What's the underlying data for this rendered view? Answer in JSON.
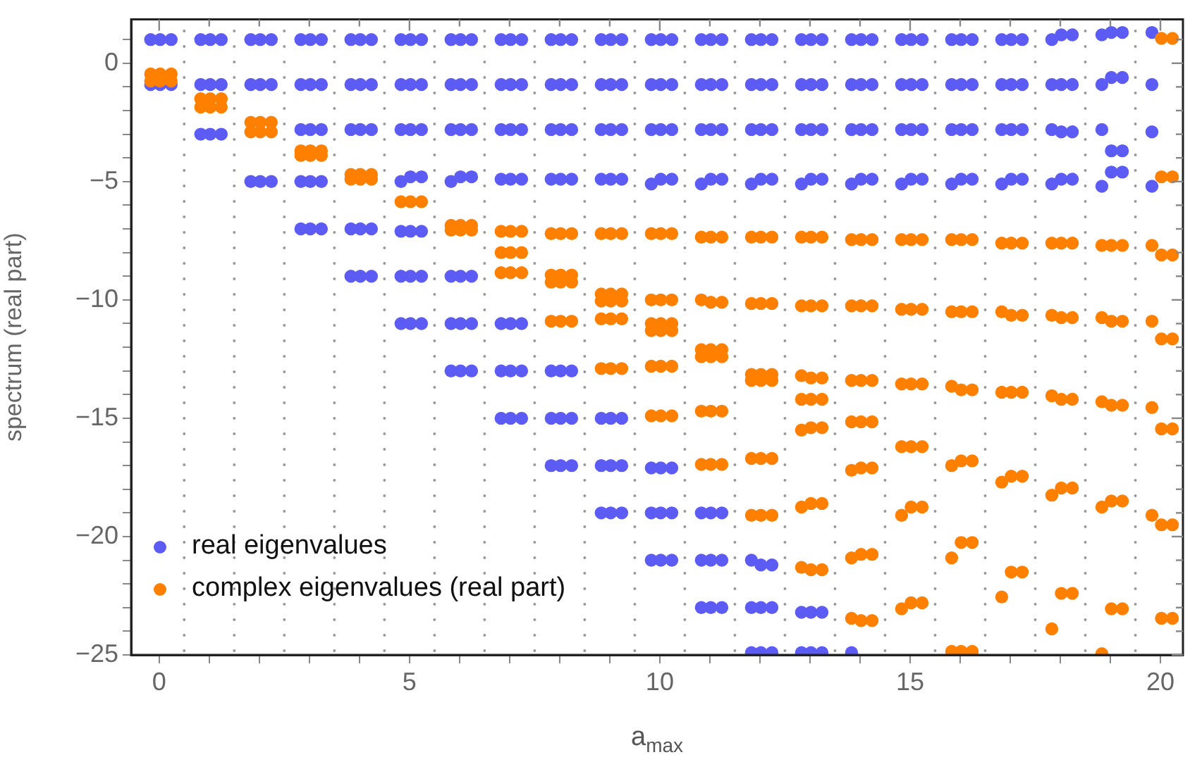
{
  "chart_data": {
    "type": "scatter",
    "xlabel": "a$_{max}$",
    "ylabel": "spectrum (real part)",
    "xlim": [
      -0.56,
      20.45
    ],
    "ylim": [
      -25,
      1.85
    ],
    "xticks": [
      0,
      {
        "value": 1,
        "label": null
      },
      {
        "value": 2,
        "label": null
      },
      {
        "value": 3,
        "label": null
      },
      {
        "value": 4,
        "label": null
      },
      5,
      {
        "value": 6,
        "label": null
      },
      {
        "value": 7,
        "label": null
      },
      {
        "value": 8,
        "label": null
      },
      {
        "value": 9,
        "label": null
      },
      10,
      {
        "value": 11,
        "label": null
      },
      {
        "value": 12,
        "label": null
      },
      {
        "value": 13,
        "label": null
      },
      {
        "value": 14,
        "label": null
      },
      15,
      {
        "value": 16,
        "label": null
      },
      {
        "value": 17,
        "label": null
      },
      {
        "value": 18,
        "label": null
      },
      {
        "value": 19,
        "label": null
      },
      20
    ],
    "yticks": [
      {
        "value": 1,
        "label": null
      },
      0,
      {
        "value": -1,
        "label": null
      },
      {
        "value": -2,
        "label": null
      },
      {
        "value": -3,
        "label": null
      },
      {
        "value": -4,
        "label": null
      },
      {
        "value": -5,
        "label": "−5"
      },
      {
        "value": -6,
        "label": null
      },
      {
        "value": -7,
        "label": null
      },
      {
        "value": -8,
        "label": null
      },
      {
        "value": -9,
        "label": null
      },
      {
        "value": -10,
        "label": "−10"
      },
      {
        "value": -11,
        "label": null
      },
      {
        "value": -12,
        "label": null
      },
      {
        "value": -13,
        "label": null
      },
      {
        "value": -14,
        "label": null
      },
      {
        "value": -15,
        "label": "−15"
      },
      {
        "value": -16,
        "label": null
      },
      {
        "value": -17,
        "label": null
      },
      {
        "value": -18,
        "label": null
      },
      {
        "value": -19,
        "label": null
      },
      {
        "value": -20,
        "label": "−20"
      },
      {
        "value": -21,
        "label": null
      },
      {
        "value": -22,
        "label": null
      },
      {
        "value": -23,
        "label": null
      },
      {
        "value": -24,
        "label": null
      },
      {
        "value": -25,
        "label": "−25"
      }
    ],
    "legend": "bottom left",
    "marker": "circle",
    "ref_lines": [
      {
        "axis": "x",
        "value": 0.5,
        "color": "#999999",
        "line_style": "dotted"
      },
      {
        "axis": "x",
        "value": 1.5,
        "color": "#999999",
        "line_style": "dotted"
      },
      {
        "axis": "x",
        "value": 2.5,
        "color": "#999999",
        "line_style": "dotted"
      },
      {
        "axis": "x",
        "value": 3.5,
        "color": "#999999",
        "line_style": "dotted"
      },
      {
        "axis": "x",
        "value": 4.5,
        "color": "#999999",
        "line_style": "dotted"
      },
      {
        "axis": "x",
        "value": 5.5,
        "color": "#999999",
        "line_style": "dotted"
      },
      {
        "axis": "x",
        "value": 6.5,
        "color": "#999999",
        "line_style": "dotted"
      },
      {
        "axis": "x",
        "value": 7.5,
        "color": "#999999",
        "line_style": "dotted"
      },
      {
        "axis": "x",
        "value": 8.5,
        "color": "#999999",
        "line_style": "dotted"
      },
      {
        "axis": "x",
        "value": 9.5,
        "color": "#999999",
        "line_style": "dotted"
      },
      {
        "axis": "x",
        "value": 10.5,
        "color": "#999999",
        "line_style": "dotted"
      },
      {
        "axis": "x",
        "value": 11.5,
        "color": "#999999",
        "line_style": "dotted"
      },
      {
        "axis": "x",
        "value": 12.5,
        "color": "#999999",
        "line_style": "dotted"
      },
      {
        "axis": "x",
        "value": 13.5,
        "color": "#999999",
        "line_style": "dotted"
      },
      {
        "axis": "x",
        "value": 14.5,
        "color": "#999999",
        "line_style": "dotted"
      },
      {
        "axis": "x",
        "value": 15.5,
        "color": "#999999",
        "line_style": "dotted"
      },
      {
        "axis": "x",
        "value": 16.5,
        "color": "#999999",
        "line_style": "dotted"
      },
      {
        "axis": "x",
        "value": 17.5,
        "color": "#999999",
        "line_style": "dotted"
      },
      {
        "axis": "x",
        "value": 18.5,
        "color": "#999999",
        "line_style": "dotted"
      },
      {
        "axis": "x",
        "value": 19.5,
        "color": "#999999",
        "line_style": "dotted"
      }
    ],
    "series": [
      {
        "name": "real eigenvalues",
        "color": "#5c5cf5",
        "x": [
          -0.17,
          0.02,
          0.24,
          -0.17,
          0.02,
          0.24,
          0.83,
          1.02,
          1.24,
          0.83,
          1.02,
          1.24,
          0.83,
          1.02,
          1.24,
          1.83,
          2.02,
          2.24,
          1.83,
          2.02,
          2.24,
          1.83,
          2.02,
          2.24,
          2.83,
          3.02,
          3.24,
          2.83,
          3.02,
          3.24,
          2.83,
          3.02,
          3.24,
          2.83,
          3.02,
          3.24,
          2.83,
          3.02,
          3.24,
          3.83,
          4.02,
          4.24,
          3.83,
          4.02,
          4.24,
          3.83,
          4.02,
          4.24,
          3.83,
          4.02,
          4.24,
          3.83,
          4.02,
          4.24,
          4.83,
          5.02,
          5.24,
          4.83,
          5.02,
          5.24,
          4.83,
          5.02,
          5.24,
          4.83,
          5.02,
          5.24,
          4.83,
          5.02,
          5.24,
          4.83,
          5.02,
          5.24,
          4.83,
          5.02,
          5.24,
          5.83,
          6.02,
          6.24,
          5.83,
          6.02,
          6.24,
          5.83,
          6.02,
          6.24,
          5.83,
          6.02,
          6.24,
          5.83,
          6.02,
          6.24,
          5.83,
          6.02,
          6.24,
          5.83,
          6.02,
          6.24,
          6.83,
          7.02,
          7.24,
          6.83,
          7.02,
          7.24,
          6.83,
          7.02,
          7.24,
          6.83,
          7.02,
          7.24,
          6.83,
          7.02,
          7.24,
          6.83,
          7.02,
          7.24,
          6.83,
          7.02,
          7.24,
          7.83,
          8.02,
          8.24,
          7.83,
          8.02,
          8.24,
          7.83,
          8.02,
          8.24,
          7.83,
          8.02,
          8.24,
          7.83,
          8.02,
          8.24,
          7.83,
          8.02,
          8.24,
          7.83,
          8.02,
          8.24,
          8.83,
          9.02,
          9.24,
          8.83,
          9.02,
          9.24,
          8.83,
          9.02,
          9.24,
          8.83,
          9.02,
          9.24,
          8.83,
          9.02,
          9.24,
          8.83,
          9.02,
          9.24,
          8.83,
          9.02,
          9.24,
          9.83,
          10.02,
          10.24,
          9.83,
          10.02,
          10.24,
          9.83,
          10.02,
          10.24,
          9.83,
          10.02,
          10.24,
          9.83,
          10.02,
          10.24,
          9.83,
          10.02,
          10.24,
          9.83,
          10.02,
          10.24,
          10.83,
          11.02,
          11.24,
          10.83,
          11.02,
          11.24,
          10.83,
          11.02,
          11.24,
          10.83,
          11.02,
          11.24,
          10.83,
          11.02,
          11.24,
          10.83,
          11.02,
          11.24,
          10.83,
          11.02,
          11.24,
          11.83,
          12.02,
          12.24,
          11.83,
          12.02,
          12.24,
          11.83,
          12.02,
          12.24,
          11.83,
          12.02,
          12.24,
          11.83,
          12.02,
          12.24,
          11.83,
          12.02,
          12.24,
          11.83,
          12.02,
          12.24,
          12.83,
          13.02,
          13.24,
          12.83,
          13.02,
          13.24,
          12.83,
          13.02,
          13.24,
          12.83,
          13.02,
          13.24,
          12.83,
          13.02,
          13.24,
          12.83,
          13.02,
          13.24,
          13.83,
          14.02,
          14.24,
          13.83,
          14.02,
          14.24,
          13.83,
          14.02,
          14.24,
          13.83,
          14.02,
          14.24,
          13.83,
          14.83,
          15.02,
          15.24,
          14.83,
          15.02,
          15.24,
          14.83,
          15.02,
          15.24,
          14.83,
          15.02,
          15.24,
          15.83,
          16.02,
          16.24,
          15.83,
          16.02,
          16.24,
          15.83,
          16.02,
          16.24,
          15.83,
          16.02,
          16.24,
          16.83,
          17.02,
          17.24,
          16.83,
          17.02,
          17.24,
          16.83,
          17.02,
          17.24,
          16.83,
          17.02,
          17.24,
          17.83,
          18.02,
          18.24,
          17.83,
          18.02,
          18.24,
          17.83,
          18.02,
          18.24,
          17.83,
          18.02,
          18.24,
          18.83,
          19.02,
          19.24,
          18.83,
          19.02,
          19.24,
          18.83,
          19.02,
          19.24,
          19.02,
          19.24,
          18.83,
          19.83,
          19.83,
          19.83,
          19.83
        ],
        "values": [
          1,
          1,
          1,
          -0.9,
          -0.9,
          -0.9,
          1,
          1,
          1,
          -0.9,
          -0.9,
          -0.9,
          -3,
          -3,
          -3,
          1,
          1,
          1,
          -0.9,
          -0.9,
          -0.9,
          -5,
          -5,
          -5,
          1,
          1,
          1,
          -0.9,
          -0.9,
          -0.9,
          -2.8,
          -2.8,
          -2.8,
          -5,
          -5,
          -5,
          -7,
          -7,
          -7,
          1,
          1,
          1,
          -0.9,
          -0.9,
          -0.9,
          -2.8,
          -2.8,
          -2.8,
          -7,
          -7,
          -7,
          -9,
          -9,
          -9,
          1,
          1,
          1,
          -0.9,
          -0.9,
          -0.9,
          -2.8,
          -2.8,
          -2.8,
          -5,
          -4.8,
          -4.8,
          -7.1,
          -7.1,
          -7.1,
          -9,
          -9,
          -9,
          -11,
          -11,
          -11,
          1,
          1,
          1,
          -0.9,
          -0.9,
          -0.9,
          -2.8,
          -2.8,
          -2.8,
          -5,
          -4.8,
          -4.8,
          -9,
          -9,
          -9,
          -11,
          -11,
          -11,
          -13,
          -13,
          -13,
          1,
          1,
          1,
          -0.9,
          -0.9,
          -0.9,
          -2.8,
          -2.8,
          -2.8,
          -4.9,
          -4.9,
          -4.9,
          -11,
          -11,
          -11,
          -13,
          -13,
          -13,
          -15,
          -15,
          -15,
          1,
          1,
          1,
          -0.9,
          -0.9,
          -0.9,
          -2.8,
          -2.8,
          -2.8,
          -4.9,
          -4.9,
          -4.9,
          -13,
          -13,
          -13,
          -15,
          -15,
          -15,
          -17,
          -17,
          -17,
          1,
          1,
          1,
          -0.9,
          -0.9,
          -0.9,
          -2.8,
          -2.8,
          -2.8,
          -4.9,
          -4.9,
          -4.9,
          -15,
          -15,
          -15,
          -17,
          -17,
          -17,
          -19,
          -19,
          -19,
          1,
          1,
          1,
          -0.9,
          -0.9,
          -0.9,
          -2.8,
          -2.8,
          -2.8,
          -5.1,
          -4.9,
          -4.9,
          -17.1,
          -17.1,
          -17.1,
          -19,
          -19,
          -19,
          -21,
          -21,
          -21,
          1,
          1,
          1,
          -0.9,
          -0.9,
          -0.9,
          -2.8,
          -2.8,
          -2.8,
          -5.1,
          -4.9,
          -4.9,
          -19,
          -19,
          -19,
          -21,
          -21,
          -21,
          -23,
          -23,
          -23,
          1,
          1,
          1,
          -0.9,
          -0.9,
          -0.9,
          -2.8,
          -2.8,
          -2.8,
          -5.1,
          -4.9,
          -4.9,
          -21,
          -21.2,
          -21.2,
          -23,
          -23,
          -23,
          -24.9,
          -24.9,
          -24.9,
          1,
          1,
          1,
          -0.9,
          -0.9,
          -0.9,
          -2.8,
          -2.8,
          -2.8,
          -5.1,
          -4.9,
          -4.9,
          -23.2,
          -23.2,
          -23.2,
          -24.9,
          -24.9,
          -24.9,
          1,
          1,
          1,
          -0.9,
          -0.9,
          -0.9,
          -2.8,
          -2.8,
          -2.8,
          -5.1,
          -4.9,
          -4.9,
          -24.9,
          1,
          1,
          1,
          -0.9,
          -0.9,
          -0.9,
          -2.8,
          -2.8,
          -2.8,
          -5.1,
          -4.9,
          -4.9,
          1,
          1,
          1,
          -0.9,
          -0.9,
          -0.9,
          -2.8,
          -2.8,
          -2.8,
          -5.1,
          -4.9,
          -4.9,
          1,
          1,
          1,
          -0.9,
          -0.9,
          -0.9,
          -2.8,
          -2.8,
          -2.8,
          -5.1,
          -4.9,
          -4.9,
          1,
          1.2,
          1.2,
          -0.9,
          -0.9,
          -0.9,
          -2.8,
          -2.9,
          -2.9,
          -5.1,
          -4.9,
          -4.9,
          1.2,
          1.3,
          1.3,
          -0.9,
          -0.6,
          -0.6,
          -2.8,
          -3.7,
          -3.7,
          -4.6,
          -4.6,
          -5.2,
          1.3,
          -0.9,
          -2.9,
          -5.2
        ]
      },
      {
        "name": "complex eigenvalues (real part)",
        "color": "#ff8000",
        "x": [
          -0.17,
          0.02,
          0.24,
          -0.17,
          0.02,
          0.24,
          0.83,
          1.02,
          1.24,
          0.83,
          1.02,
          1.24,
          1.83,
          2.02,
          2.24,
          1.83,
          2.02,
          2.24,
          2.83,
          3.02,
          3.24,
          2.83,
          3.02,
          3.24,
          3.83,
          4.02,
          4.24,
          3.83,
          4.02,
          4.24,
          4.83,
          5.02,
          5.24,
          5.83,
          6.02,
          6.24,
          5.83,
          6.02,
          6.24,
          6.83,
          7.02,
          7.24,
          6.83,
          7.02,
          7.24,
          6.83,
          7.02,
          7.24,
          7.83,
          8.02,
          8.24,
          7.83,
          8.02,
          8.24,
          7.83,
          8.02,
          8.24,
          7.83,
          8.02,
          8.24,
          8.83,
          9.02,
          9.24,
          8.83,
          9.02,
          9.24,
          8.83,
          9.02,
          9.24,
          8.83,
          9.02,
          9.24,
          8.83,
          9.02,
          9.24,
          9.83,
          10.02,
          10.24,
          9.83,
          10.02,
          10.24,
          9.83,
          10.02,
          10.24,
          9.83,
          10.02,
          10.24,
          9.83,
          10.02,
          10.24,
          9.83,
          10.02,
          10.24,
          10.83,
          11.02,
          11.24,
          10.83,
          11.02,
          11.24,
          10.83,
          11.02,
          11.24,
          10.83,
          11.02,
          11.24,
          10.83,
          11.02,
          11.24,
          10.83,
          11.02,
          11.24,
          11.83,
          12.02,
          12.24,
          11.83,
          12.02,
          12.24,
          11.83,
          12.02,
          12.24,
          11.83,
          12.02,
          12.24,
          11.83,
          12.02,
          12.24,
          11.83,
          12.02,
          12.24,
          12.83,
          13.02,
          13.24,
          12.83,
          13.02,
          13.24,
          12.83,
          13.02,
          13.24,
          12.83,
          13.02,
          13.24,
          12.83,
          13.02,
          13.24,
          12.83,
          13.02,
          13.24,
          12.83,
          13.02,
          13.24,
          13.83,
          14.02,
          14.24,
          13.83,
          14.02,
          14.24,
          13.83,
          14.02,
          14.24,
          13.83,
          14.02,
          14.24,
          13.83,
          14.02,
          14.24,
          13.83,
          14.02,
          14.24,
          13.83,
          14.02,
          14.24,
          14.83,
          15.02,
          15.24,
          14.83,
          15.02,
          15.24,
          14.83,
          15.02,
          15.24,
          14.83,
          15.02,
          15.24,
          14.83,
          15.02,
          15.24,
          14.83,
          15.02,
          15.24,
          15.83,
          16.02,
          16.24,
          15.83,
          16.02,
          16.24,
          15.83,
          16.02,
          16.24,
          15.83,
          16.02,
          16.24,
          15.83,
          16.02,
          16.24,
          15.83,
          16.02,
          16.24,
          16.83,
          17.02,
          17.24,
          16.83,
          17.02,
          17.24,
          16.83,
          17.02,
          17.24,
          16.83,
          17.02,
          17.24,
          17.02,
          17.24,
          16.83,
          17.83,
          18.02,
          18.24,
          17.83,
          18.02,
          18.24,
          17.83,
          18.02,
          18.24,
          17.83,
          18.02,
          18.24,
          18.02,
          18.24,
          17.83,
          18.83,
          19.02,
          19.24,
          18.83,
          19.02,
          19.24,
          18.83,
          19.02,
          19.24,
          18.83,
          19.02,
          19.24,
          19.02,
          19.24,
          18.83,
          20.02,
          20.24,
          20.02,
          20.24,
          19.83,
          20.02,
          20.24,
          19.83,
          20.02,
          20.24,
          19.83,
          20.02,
          20.24,
          19.83,
          20.02,
          20.24,
          20.02,
          20.24
        ],
        "values": [
          -0.45,
          -0.45,
          -0.45,
          -0.75,
          -0.75,
          -0.75,
          -1.5,
          -1.5,
          -1.5,
          -1.85,
          -1.85,
          -1.85,
          -2.5,
          -2.5,
          -2.5,
          -2.9,
          -2.9,
          -2.9,
          -3.7,
          -3.7,
          -3.7,
          -3.9,
          -3.9,
          -3.9,
          -4.7,
          -4.7,
          -4.7,
          -4.9,
          -4.9,
          -4.9,
          -5.85,
          -5.85,
          -5.85,
          -6.85,
          -6.85,
          -6.85,
          -7.05,
          -7.05,
          -7.05,
          -7.1,
          -7.1,
          -7.1,
          -8,
          -8,
          -8,
          -8.85,
          -8.85,
          -8.85,
          -7.2,
          -7.2,
          -7.2,
          -8.95,
          -8.95,
          -8.95,
          -9.25,
          -9.25,
          -9.25,
          -10.9,
          -10.9,
          -10.9,
          -7.2,
          -7.2,
          -7.2,
          -9.75,
          -9.75,
          -9.75,
          -10.05,
          -10.05,
          -10.05,
          -10.8,
          -10.8,
          -10.8,
          -12.9,
          -12.9,
          -12.9,
          -7.2,
          -7.2,
          -7.2,
          -10,
          -10,
          -10,
          -11,
          -11,
          -11,
          -11.3,
          -11.3,
          -11.3,
          -12.8,
          -12.8,
          -12.8,
          -14.9,
          -14.9,
          -14.9,
          -7.35,
          -7.35,
          -7.35,
          -10,
          -10.1,
          -10.1,
          -12.1,
          -12.1,
          -12.1,
          -12.4,
          -12.4,
          -12.4,
          -14.7,
          -14.7,
          -14.7,
          -16.95,
          -16.95,
          -16.95,
          -7.35,
          -7.35,
          -7.35,
          -10.15,
          -10.15,
          -10.15,
          -13.15,
          -13.15,
          -13.15,
          -13.4,
          -13.4,
          -13.4,
          -16.7,
          -16.7,
          -16.7,
          -19.1,
          -19.1,
          -19.1,
          -7.35,
          -7.35,
          -7.35,
          -10.25,
          -10.25,
          -10.25,
          -13.2,
          -13.3,
          -13.3,
          -14.2,
          -14.2,
          -14.2,
          -15.5,
          -15.4,
          -15.4,
          -18.75,
          -18.6,
          -18.6,
          -21.3,
          -21.4,
          -21.4,
          -7.45,
          -7.45,
          -7.45,
          -10.25,
          -10.25,
          -10.25,
          -13.4,
          -13.4,
          -13.4,
          -15.15,
          -15.15,
          -15.15,
          -17.2,
          -17.1,
          -17.1,
          -20.9,
          -20.75,
          -20.75,
          -23.45,
          -23.55,
          -23.55,
          -7.45,
          -7.45,
          -7.45,
          -10.4,
          -10.4,
          -10.4,
          -13.55,
          -13.55,
          -13.55,
          -16.2,
          -16.2,
          -16.2,
          -19.1,
          -18.75,
          -18.75,
          -23.05,
          -22.8,
          -22.8,
          -7.45,
          -7.45,
          -7.45,
          -10.5,
          -10.5,
          -10.5,
          -13.65,
          -13.8,
          -13.8,
          -17,
          -16.8,
          -16.8,
          -20.9,
          -20.25,
          -20.25,
          -24.85,
          -24.85,
          -24.85,
          -7.6,
          -7.6,
          -7.6,
          -10.5,
          -10.65,
          -10.65,
          -13.9,
          -13.9,
          -13.9,
          -17.7,
          -17.45,
          -17.45,
          -21.5,
          -21.5,
          -22.55,
          -7.6,
          -7.6,
          -7.6,
          -10.65,
          -10.75,
          -10.75,
          -14.05,
          -14.2,
          -14.2,
          -18.25,
          -17.95,
          -17.95,
          -22.4,
          -22.4,
          -23.9,
          -7.7,
          -7.7,
          -7.7,
          -10.75,
          -10.9,
          -10.9,
          -14.3,
          -14.45,
          -14.45,
          -18.75,
          -18.5,
          -18.5,
          -23.05,
          -23.05,
          -24.95,
          1.05,
          1.05,
          -4.8,
          -4.8,
          -7.7,
          -8.1,
          -8.1,
          -10.9,
          -11.65,
          -11.65,
          -14.55,
          -15.45,
          -15.45,
          -19.1,
          -19.5,
          -19.5,
          -23.45,
          -23.45
        ]
      }
    ]
  }
}
